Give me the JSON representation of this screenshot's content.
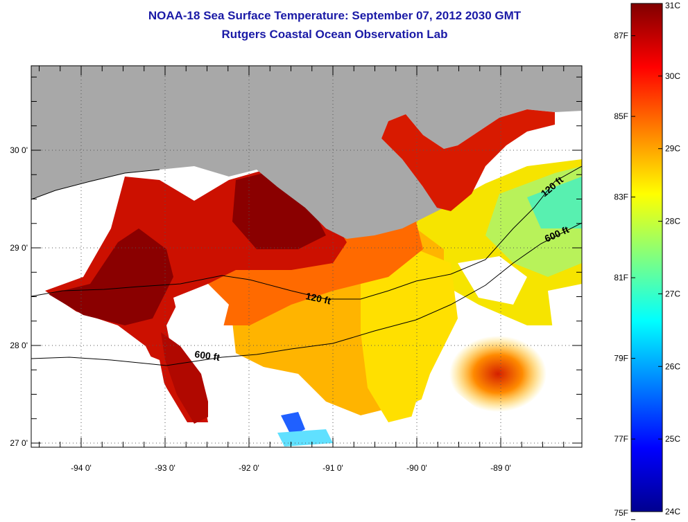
{
  "title": "NOAA-18 Sea Surface Temperature:  September 07, 2012 2030 GMT",
  "subtitle": "Rutgers Coastal Ocean Observation Lab",
  "lon_ticks": [
    {
      "value": -94,
      "label": "-94 0'"
    },
    {
      "value": -93,
      "label": "-93 0'"
    },
    {
      "value": -92,
      "label": "-92 0'"
    },
    {
      "value": -91,
      "label": "-91 0'"
    },
    {
      "value": -90,
      "label": "-90 0'"
    },
    {
      "value": -89,
      "label": "-89 0'"
    }
  ],
  "lat_ticks": [
    {
      "value": 30,
      "label": "30 0'"
    },
    {
      "value": 29,
      "label": "29 0'"
    },
    {
      "value": 28,
      "label": "28 0'"
    },
    {
      "value": 27,
      "label": "27 0'"
    }
  ],
  "contour_labels": [
    "120 ft",
    "600 ft",
    "120 ft",
    "600 ft"
  ],
  "colorbar": {
    "min_c": 24,
    "max_c": 31,
    "celsius_ticks": [
      {
        "value": 31,
        "label": "31C"
      },
      {
        "value": 30,
        "label": "30C"
      },
      {
        "value": 29,
        "label": "29C"
      },
      {
        "value": 28,
        "label": "28C"
      },
      {
        "value": 27,
        "label": "27C"
      },
      {
        "value": 26,
        "label": "26C"
      },
      {
        "value": 25,
        "label": "25C"
      },
      {
        "value": 24,
        "label": "24C"
      }
    ],
    "fahrenheit_ticks": [
      {
        "value": 87,
        "label": "87F"
      },
      {
        "value": 85,
        "label": "85F"
      },
      {
        "value": 83,
        "label": "83F"
      },
      {
        "value": 81,
        "label": "81F"
      },
      {
        "value": 79,
        "label": "79F"
      },
      {
        "value": 77,
        "label": "77F"
      },
      {
        "value": 75,
        "label": "75F"
      }
    ],
    "colors": [
      "#00008f",
      "#0000ff",
      "#0080ff",
      "#00ffff",
      "#80ff80",
      "#ffff00",
      "#ff8000",
      "#ff0000",
      "#800000"
    ]
  },
  "colors": {
    "land": "#a8a8a8",
    "no_data": "#ffffff",
    "title": "#1a1aa6"
  }
}
